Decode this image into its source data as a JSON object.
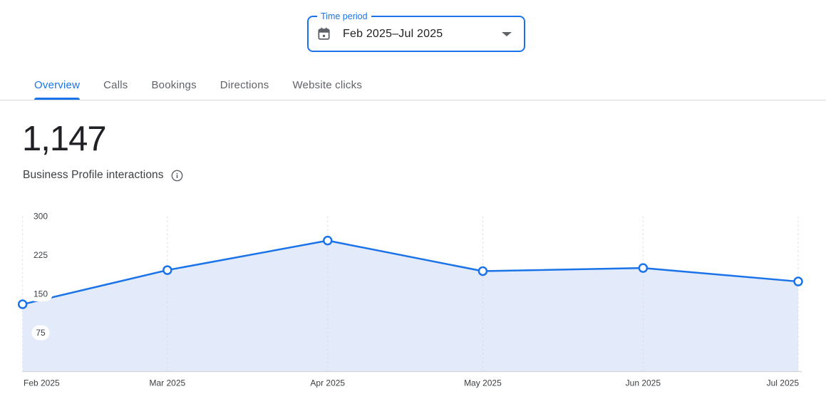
{
  "time_period": {
    "label": "Time period",
    "value": "Feb 2025–Jul 2025"
  },
  "tabs": [
    {
      "label": "Overview",
      "active": true
    },
    {
      "label": "Calls",
      "active": false
    },
    {
      "label": "Bookings",
      "active": false
    },
    {
      "label": "Directions",
      "active": false
    },
    {
      "label": "Website clicks",
      "active": false
    }
  ],
  "metric": {
    "value": "1,147",
    "label": "Business Profile interactions"
  },
  "colors": {
    "accent": "#1a73e8",
    "area_fill": "#e3ebfb",
    "gridline": "#dadce0",
    "baseline": "#d2d4d7",
    "axis_text": "#3c4043",
    "muted_text": "#5f6368",
    "primary_text": "#202124"
  },
  "chart_data": {
    "type": "area",
    "title": "Business Profile interactions",
    "x": [
      "Feb 2025",
      "Mar 2025",
      "Apr 2025",
      "May 2025",
      "Jun 2025",
      "Jul 2025"
    ],
    "day_offsets": [
      0,
      28,
      59,
      89,
      120,
      150
    ],
    "values": [
      130,
      196,
      253,
      194,
      200,
      174
    ],
    "yticks": [
      75,
      150,
      225,
      300
    ],
    "ylim": [
      0,
      300
    ],
    "xlabel": "",
    "ylabel": "",
    "grid": "vertical-dashed",
    "legend": "none",
    "markers": "circle-open"
  }
}
